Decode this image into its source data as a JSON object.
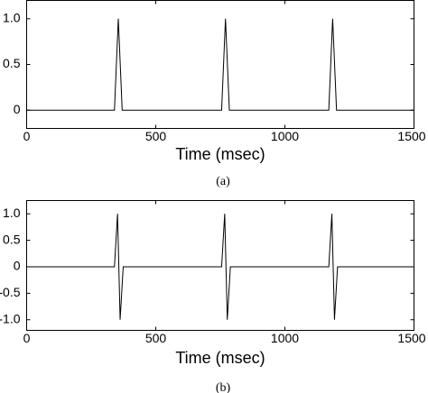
{
  "chart_data": [
    {
      "type": "line",
      "x_label": "Time (msec)",
      "caption": "(a)",
      "color": "#000000",
      "x": [
        0,
        340,
        355,
        370,
        755,
        770,
        785,
        1170,
        1185,
        1200,
        1500
      ],
      "values": [
        0,
        0,
        1,
        0,
        0,
        1,
        0,
        0,
        1,
        0,
        0
      ],
      "xlim": [
        0,
        1500
      ],
      "xticks": [
        0,
        500,
        1000,
        1500
      ],
      "ylim": [
        -0.2,
        1.2
      ],
      "yticks": [
        0,
        0.5,
        {
          "value": 1,
          "label": "1.0"
        }
      ]
    },
    {
      "type": "line",
      "x_label": "Time (msec)",
      "caption": "(b)",
      "color": "#000000",
      "x": [
        0,
        340,
        352,
        357,
        362,
        374,
        755,
        767,
        772,
        777,
        789,
        1170,
        1182,
        1187,
        1192,
        1204,
        1500
      ],
      "values": [
        0,
        0,
        1,
        0,
        -1,
        0,
        0,
        1,
        0,
        -1,
        0,
        0,
        1,
        0,
        -1,
        0,
        0
      ],
      "xlim": [
        0,
        1500
      ],
      "xticks": [
        0,
        500,
        1000,
        1500
      ],
      "ylim": [
        -1.2,
        1.25
      ],
      "yticks": [
        {
          "value": -1,
          "label": "-1.0"
        },
        -0.5,
        0,
        0.5,
        {
          "value": 1,
          "label": "1.0"
        }
      ]
    }
  ]
}
